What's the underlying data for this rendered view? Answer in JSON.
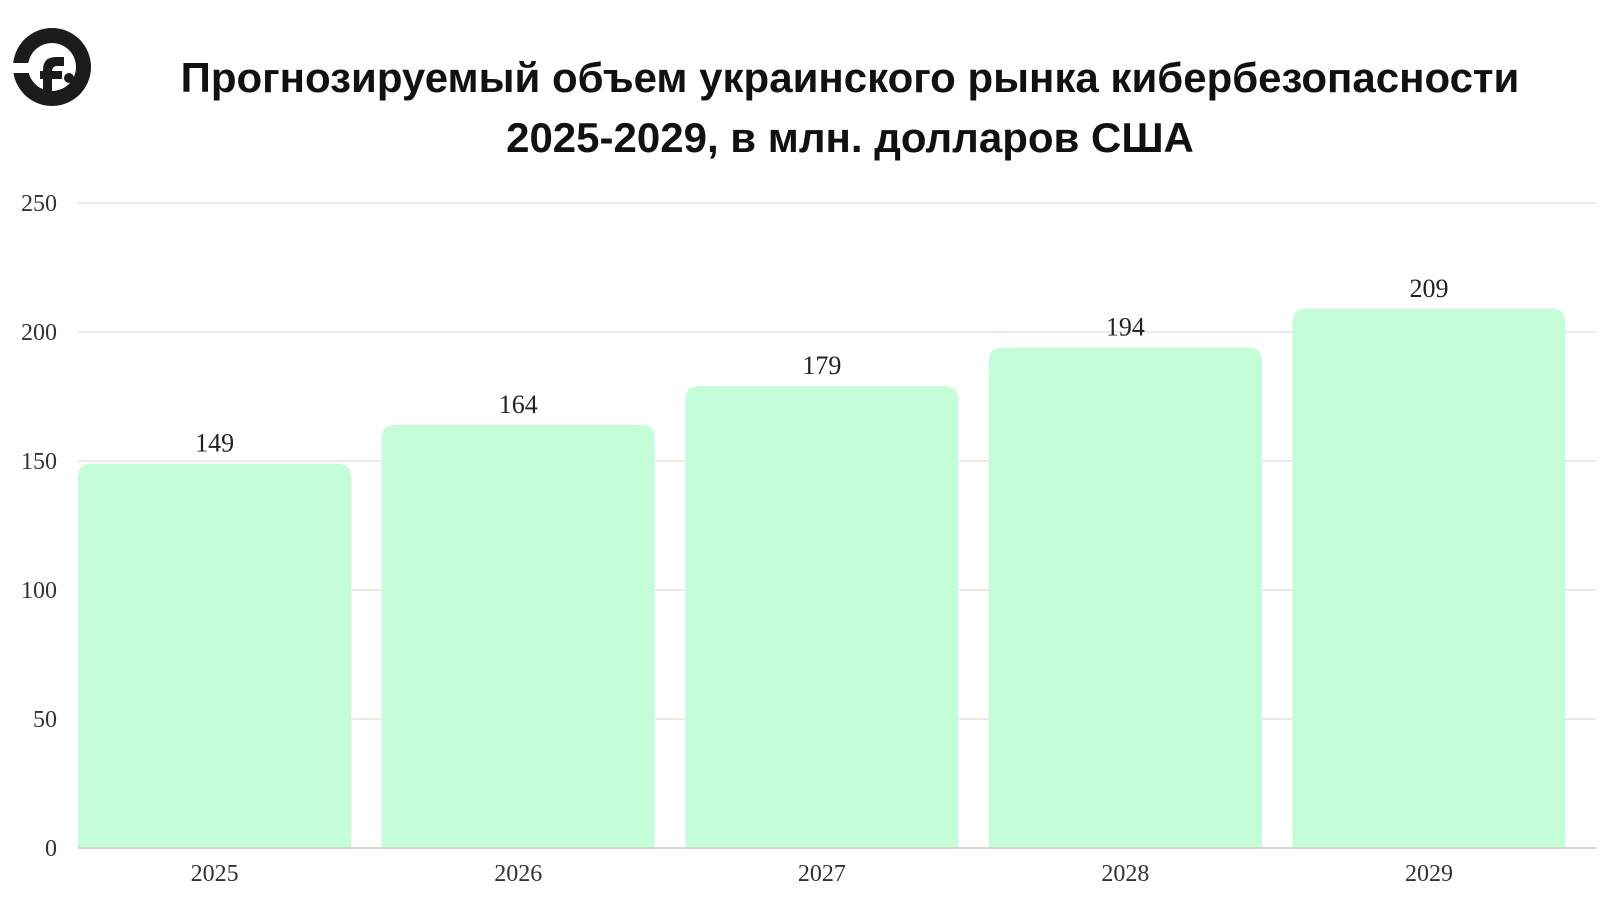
{
  "chart_data": {
    "type": "bar",
    "title_line1": "Прогнозируемый объем украинского рынка кибербезопасности",
    "title_line2": "2025-2029, в млн. долларов США",
    "categories": [
      "2025",
      "2026",
      "2027",
      "2028",
      "2029"
    ],
    "values": [
      149,
      164,
      179,
      194,
      209
    ],
    "data_labels": [
      "149",
      "164",
      "179",
      "194",
      "209"
    ],
    "yticks": [
      "0",
      "50",
      "100",
      "150",
      "200",
      "250"
    ],
    "ylim": [
      0,
      250
    ],
    "grid": true,
    "legend": false,
    "bar_color": "#c5fdd9",
    "grid_color": "#e3e3e3"
  },
  "logo": {
    "icon": "brand-logo-icon",
    "color": "#1b1b1b"
  }
}
